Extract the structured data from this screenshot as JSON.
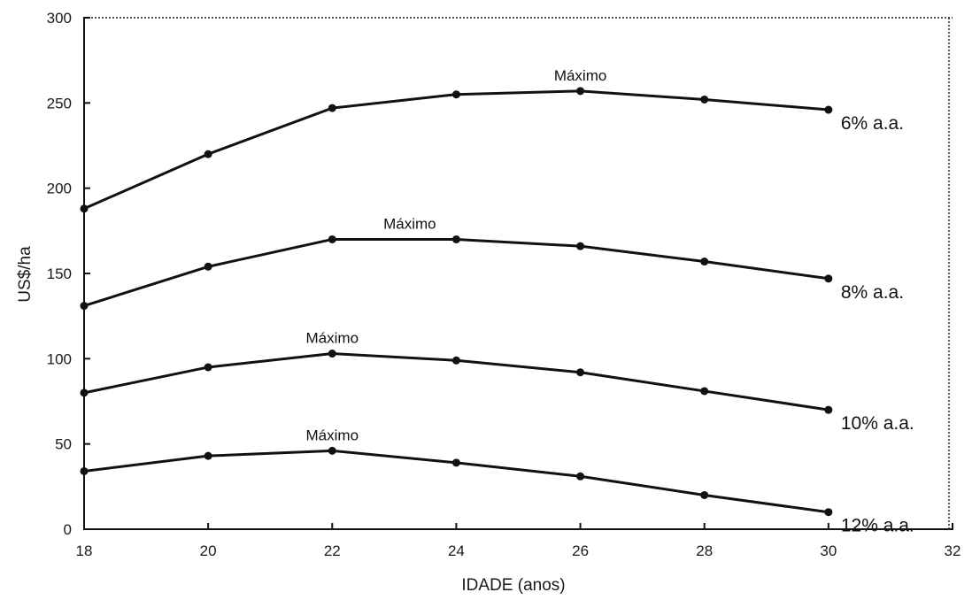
{
  "chart_data": {
    "type": "line",
    "title": "",
    "xlabel": "IDADE (anos)",
    "ylabel": "US$/ha",
    "xlim": [
      18,
      32
    ],
    "ylim": [
      0,
      300
    ],
    "x_ticks": [
      18,
      20,
      22,
      24,
      26,
      28,
      30,
      32
    ],
    "y_ticks": [
      0,
      50,
      100,
      150,
      200,
      250,
      300
    ],
    "grid": false,
    "legend": "labels at right end of each line",
    "x": [
      18,
      20,
      22,
      24,
      26,
      28,
      30
    ],
    "series": [
      {
        "name": "6% a.a.",
        "values": [
          188,
          220,
          247,
          255,
          257,
          252,
          246
        ]
      },
      {
        "name": "8% a.a.",
        "values": [
          131,
          154,
          170,
          170,
          166,
          157,
          147
        ]
      },
      {
        "name": "10% a.a.",
        "values": [
          80,
          95,
          103,
          99,
          92,
          81,
          70
        ]
      },
      {
        "name": "12% a.a.",
        "values": [
          34,
          43,
          46,
          39,
          31,
          20,
          10
        ]
      }
    ],
    "annotations": [
      {
        "text": "Máximo",
        "x": 26,
        "y": 257
      },
      {
        "text": "Máximo",
        "x": 23.25,
        "y": 170
      },
      {
        "text": "Máximo",
        "x": 22,
        "y": 103
      },
      {
        "text": "Máximo",
        "x": 22,
        "y": 46
      }
    ]
  }
}
